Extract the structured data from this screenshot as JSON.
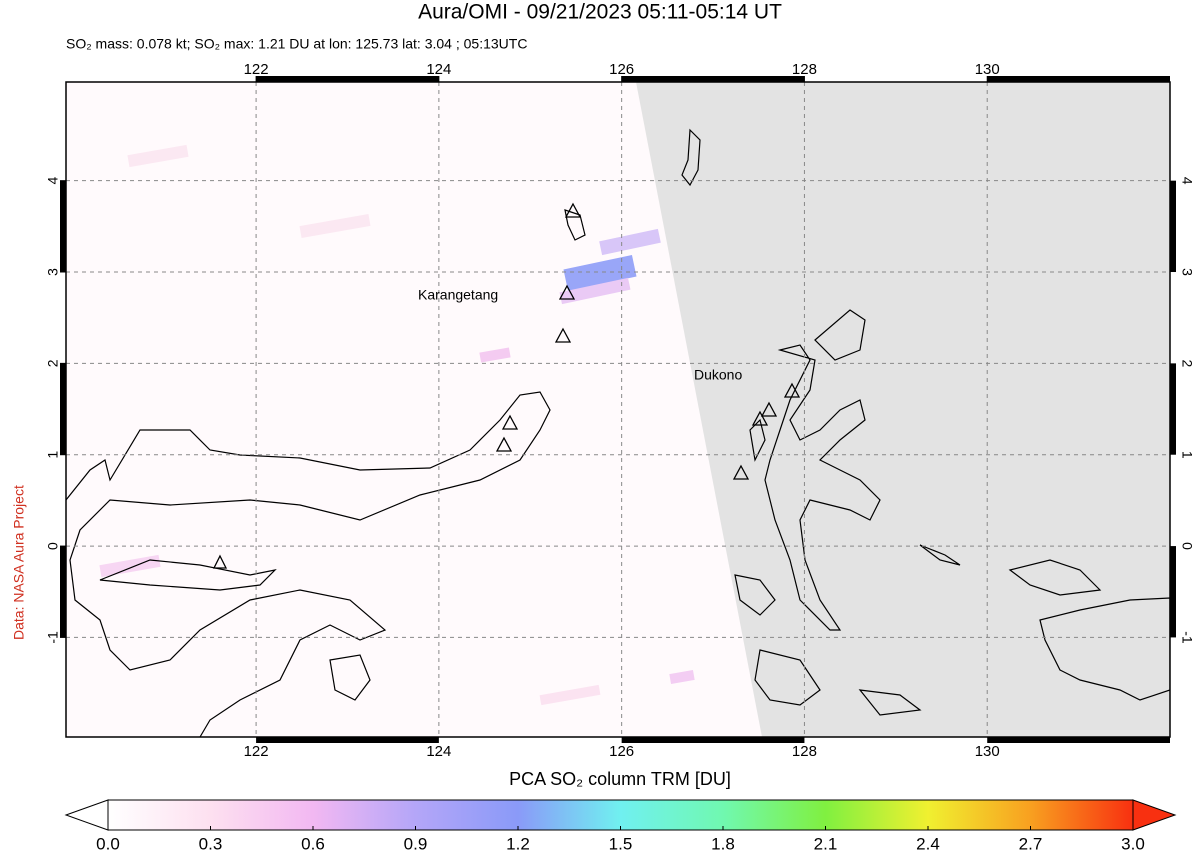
{
  "header": {
    "title": "Aura/OMI - 09/21/2023 05:11-05:14 UT",
    "subtitle": "SO₂ mass: 0.078 kt; SO₂ max: 1.21 DU at lon: 125.73 lat: 3.04 ; 05:13UTC"
  },
  "map": {
    "xlim": [
      119.92,
      132.0
    ],
    "ylim": [
      -2.09,
      5.08
    ],
    "xticks": [
      122,
      124,
      126,
      128,
      130
    ],
    "yticks": [
      4,
      3,
      2,
      1,
      0,
      -1
    ],
    "grid": true,
    "labels": [
      "Karangetang",
      "Dukono"
    ]
  },
  "colorbar": {
    "title": "PCA SO₂ column TRM [DU]",
    "lim": [
      0,
      3
    ],
    "ticks": [
      {
        "value": 0,
        "label": "0.0"
      },
      {
        "value": 0.3,
        "label": "0.3"
      },
      {
        "value": 0.6,
        "label": "0.6"
      },
      {
        "value": 0.9,
        "label": "0.9"
      },
      {
        "value": 1.2,
        "label": "1.2"
      },
      {
        "value": 1.5,
        "label": "1.5"
      },
      {
        "value": 1.8,
        "label": "1.8"
      },
      {
        "value": 2.1,
        "label": "2.1"
      },
      {
        "value": 2.4,
        "label": "2.4"
      },
      {
        "value": 2.7,
        "label": "2.7"
      },
      {
        "value": 3,
        "label": "3.0"
      }
    ]
  },
  "credit": "Data: NASA Aura Project"
}
